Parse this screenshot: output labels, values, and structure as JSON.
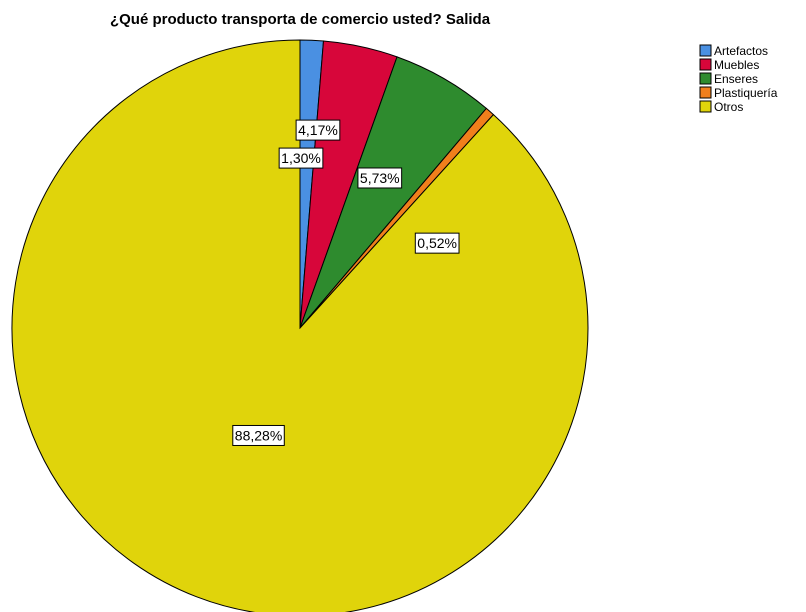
{
  "chart_data": {
    "type": "pie",
    "title": "¿Qué producto transporta de comercio usted? Salida",
    "legend_position": "top-right",
    "start_angle_deg": 0,
    "direction": "clockwise",
    "slices": [
      {
        "name": "Artefactos",
        "value": 1.3,
        "label": "1,30%",
        "color": "#4a90e2"
      },
      {
        "name": "Muebles",
        "value": 4.17,
        "label": "4,17%",
        "color": "#d7063a"
      },
      {
        "name": "Enseres",
        "value": 5.73,
        "label": "5,73%",
        "color": "#2e8b2e"
      },
      {
        "name": "Plastiquería",
        "value": 0.52,
        "label": "0,52%",
        "color": "#f07f1c"
      },
      {
        "name": "Otros",
        "value": 88.28,
        "label": "88,28%",
        "color": "#e0d40b"
      }
    ]
  }
}
